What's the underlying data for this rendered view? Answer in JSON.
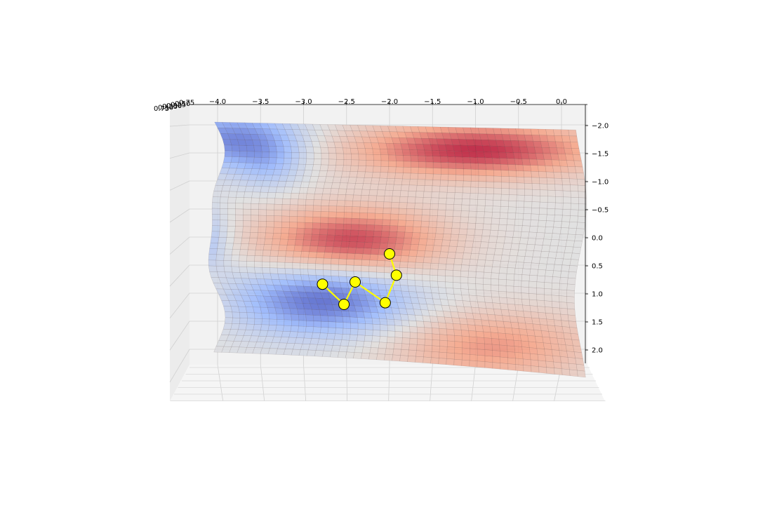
{
  "chart_data": {
    "type": "surface",
    "title": "",
    "xlabel": "",
    "ylabel": "",
    "zlabel": "",
    "grid": true,
    "colormap": "coolwarm",
    "xlim": [
      -4.2,
      0.3
    ],
    "ylim": [
      -2.0,
      2.0
    ],
    "x_ticks": [
      -4.0,
      -3.5,
      -3.0,
      -2.5,
      -2.0,
      -1.5,
      -1.0,
      -0.5,
      0.0
    ],
    "x_tick_labels": [
      "−4.0",
      "−3.5",
      "−3.0",
      "−2.5",
      "−2.0",
      "−1.5",
      "−1.0",
      "−0.5",
      "0.0"
    ],
    "y_ticks": [
      -2.0,
      -1.5,
      -1.0,
      -0.5,
      0.0,
      0.5,
      1.0,
      1.5,
      2.0
    ],
    "y_tick_labels": [
      "−2.0",
      "−1.5",
      "−1.0",
      "−0.5",
      "0.0",
      "0.5",
      "1.0",
      "1.5",
      "2.0"
    ],
    "z_tick_labels": [
      "0.75",
      "0.50",
      "0.25",
      "0.00",
      "0.25",
      "0.50",
      "0.75"
    ],
    "path_color": "#ffff00",
    "path": [
      {
        "x": -2.0,
        "y": 0.3
      },
      {
        "x": -1.92,
        "y": 0.68
      },
      {
        "x": -2.05,
        "y": 1.17
      },
      {
        "x": -2.4,
        "y": 0.8
      },
      {
        "x": -2.53,
        "y": 1.2
      },
      {
        "x": -2.78,
        "y": 0.84
      }
    ]
  }
}
